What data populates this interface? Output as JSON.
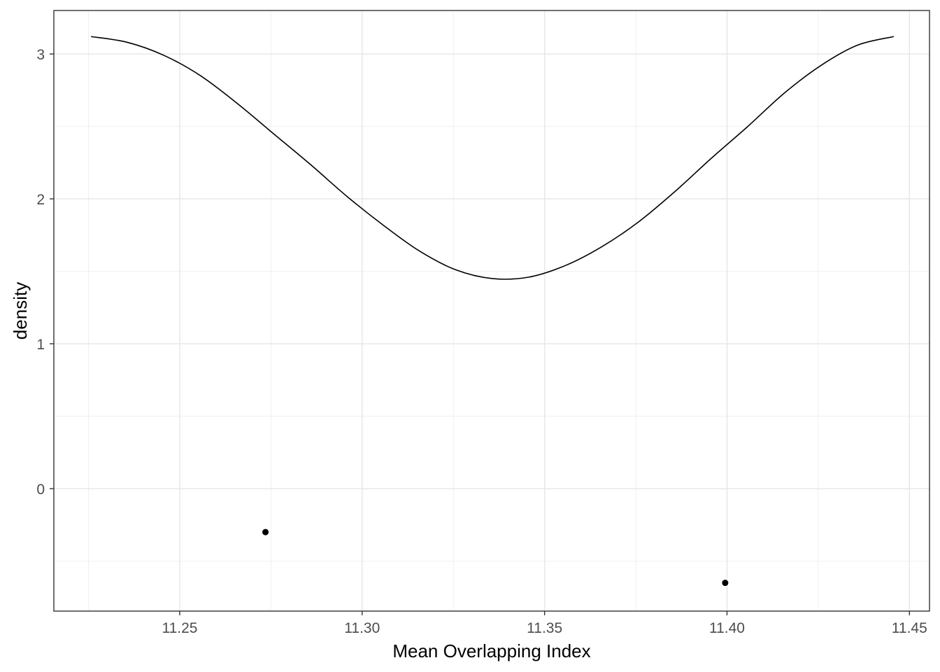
{
  "chart_data": {
    "type": "line",
    "title": "",
    "xlabel": "Mean Overlapping Index",
    "ylabel": "density",
    "xlim": [
      11.2155,
      11.4555
    ],
    "ylim": [
      -0.845,
      3.3
    ],
    "x_ticks": [
      11.25,
      11.3,
      11.35,
      11.4,
      11.45
    ],
    "x_tick_labels": [
      "11.25",
      "11.30",
      "11.35",
      "11.40",
      "11.45"
    ],
    "y_ticks": [
      0,
      1,
      2,
      3
    ],
    "y_tick_labels": [
      "0",
      "1",
      "2",
      "3"
    ],
    "grid": true,
    "legend": "none",
    "series": [
      {
        "type": "line",
        "x": [
          11.2257,
          11.2357,
          11.2457,
          11.2557,
          11.2657,
          11.2757,
          11.2857,
          11.2957,
          11.3057,
          11.3157,
          11.3257,
          11.3357,
          11.3457,
          11.3557,
          11.3657,
          11.3757,
          11.3857,
          11.3957,
          11.4057,
          11.4157,
          11.4257,
          11.4357,
          11.4457
        ],
        "y": [
          3.12,
          3.08,
          2.99,
          2.85,
          2.66,
          2.45,
          2.24,
          2.02,
          1.82,
          1.64,
          1.51,
          1.45,
          1.46,
          1.54,
          1.67,
          1.84,
          2.05,
          2.28,
          2.5,
          2.73,
          2.92,
          3.06,
          3.12
        ]
      },
      {
        "type": "points",
        "x": [
          11.2735,
          11.3995
        ],
        "y": [
          -0.3,
          -0.65
        ]
      }
    ]
  }
}
